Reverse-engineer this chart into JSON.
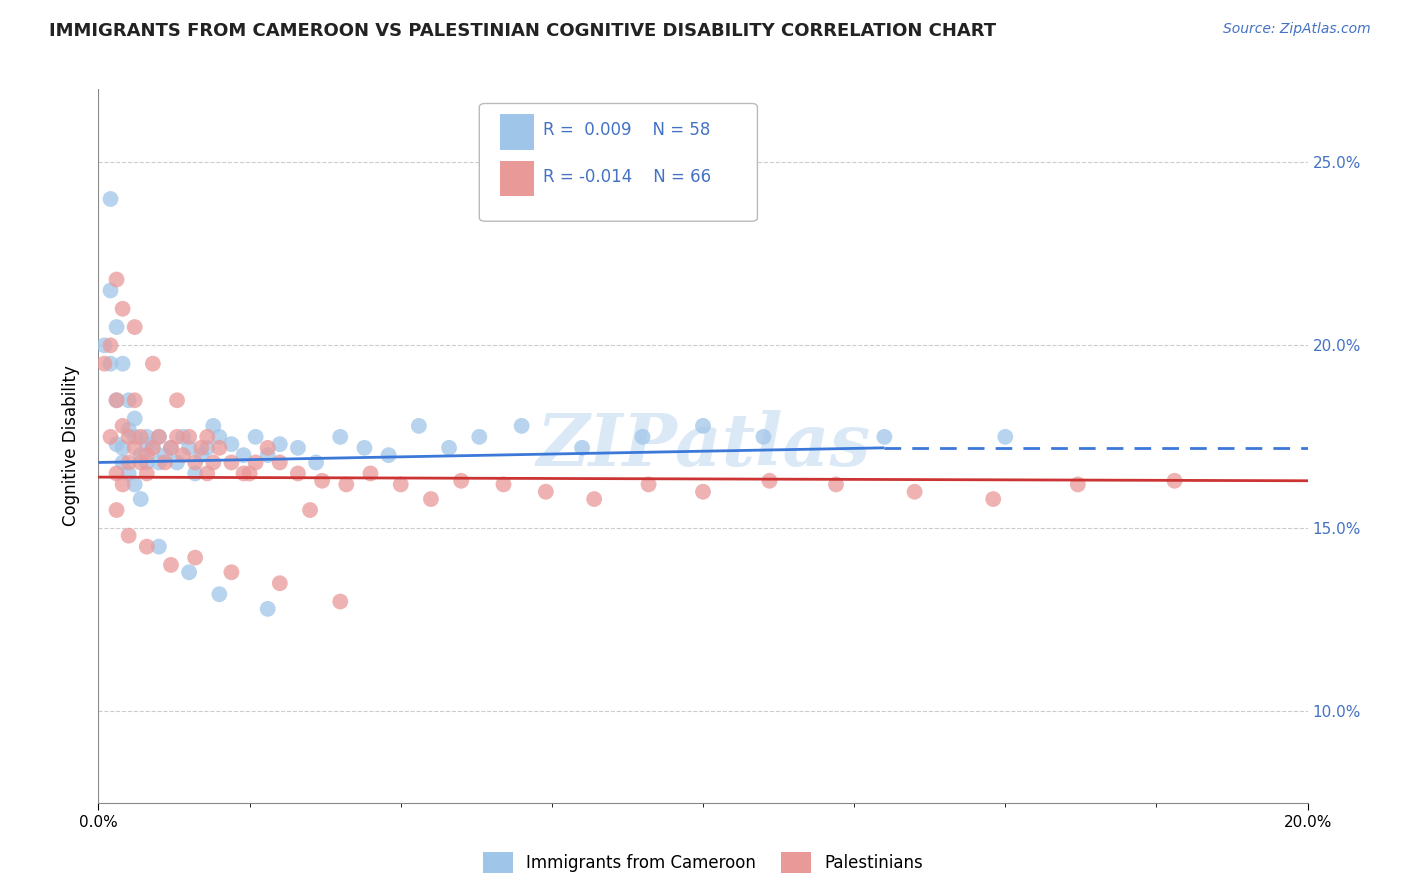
{
  "title": "IMMIGRANTS FROM CAMEROON VS PALESTINIAN COGNITIVE DISABILITY CORRELATION CHART",
  "source_text": "Source: ZipAtlas.com",
  "ylabel": "Cognitive Disability",
  "legend_label1": "Immigrants from Cameroon",
  "legend_label2": "Palestinians",
  "r1": 0.009,
  "n1": 58,
  "r2": -0.014,
  "n2": 66,
  "xmin": 0.0,
  "xmax": 0.2,
  "ymin": 0.075,
  "ymax": 0.27,
  "yticks": [
    0.1,
    0.15,
    0.2,
    0.25
  ],
  "ytick_labels": [
    "10.0%",
    "15.0%",
    "20.0%",
    "25.0%"
  ],
  "color_blue": "#9fc5e8",
  "color_pink": "#ea9999",
  "color_blue_line": "#3c78d8",
  "color_pink_line": "#cc3333",
  "watermark": "ZIPatlas",
  "blue_dots_x": [
    0.001,
    0.002,
    0.002,
    0.003,
    0.003,
    0.004,
    0.004,
    0.005,
    0.005,
    0.006,
    0.006,
    0.007,
    0.007,
    0.008,
    0.008,
    0.009,
    0.01,
    0.01,
    0.011,
    0.012,
    0.013,
    0.014,
    0.015,
    0.016,
    0.017,
    0.018,
    0.019,
    0.02,
    0.022,
    0.024,
    0.026,
    0.028,
    0.03,
    0.033,
    0.036,
    0.04,
    0.044,
    0.048,
    0.053,
    0.058,
    0.063,
    0.07,
    0.08,
    0.09,
    0.1,
    0.11,
    0.13,
    0.15,
    0.002,
    0.003,
    0.004,
    0.005,
    0.006,
    0.008,
    0.01,
    0.015,
    0.02,
    0.028
  ],
  "blue_dots_y": [
    0.2,
    0.215,
    0.195,
    0.185,
    0.173,
    0.172,
    0.168,
    0.177,
    0.165,
    0.175,
    0.162,
    0.17,
    0.158,
    0.173,
    0.168,
    0.172,
    0.168,
    0.175,
    0.17,
    0.172,
    0.168,
    0.175,
    0.172,
    0.165,
    0.17,
    0.172,
    0.178,
    0.175,
    0.173,
    0.17,
    0.175,
    0.17,
    0.173,
    0.172,
    0.168,
    0.175,
    0.172,
    0.17,
    0.178,
    0.172,
    0.175,
    0.178,
    0.172,
    0.175,
    0.178,
    0.175,
    0.175,
    0.175,
    0.24,
    0.205,
    0.195,
    0.185,
    0.18,
    0.175,
    0.145,
    0.138,
    0.132,
    0.128
  ],
  "pink_dots_x": [
    0.001,
    0.002,
    0.002,
    0.003,
    0.003,
    0.004,
    0.004,
    0.005,
    0.005,
    0.006,
    0.006,
    0.007,
    0.007,
    0.008,
    0.008,
    0.009,
    0.01,
    0.011,
    0.012,
    0.013,
    0.014,
    0.015,
    0.016,
    0.017,
    0.018,
    0.019,
    0.02,
    0.022,
    0.024,
    0.026,
    0.028,
    0.03,
    0.033,
    0.037,
    0.041,
    0.045,
    0.05,
    0.055,
    0.06,
    0.067,
    0.074,
    0.082,
    0.091,
    0.1,
    0.111,
    0.122,
    0.135,
    0.148,
    0.162,
    0.178,
    0.003,
    0.005,
    0.008,
    0.012,
    0.016,
    0.022,
    0.03,
    0.04,
    0.003,
    0.004,
    0.006,
    0.009,
    0.013,
    0.018,
    0.025,
    0.035
  ],
  "pink_dots_y": [
    0.195,
    0.2,
    0.175,
    0.185,
    0.165,
    0.178,
    0.162,
    0.175,
    0.168,
    0.185,
    0.172,
    0.175,
    0.168,
    0.17,
    0.165,
    0.172,
    0.175,
    0.168,
    0.172,
    0.175,
    0.17,
    0.175,
    0.168,
    0.172,
    0.165,
    0.168,
    0.172,
    0.168,
    0.165,
    0.168,
    0.172,
    0.168,
    0.165,
    0.163,
    0.162,
    0.165,
    0.162,
    0.158,
    0.163,
    0.162,
    0.16,
    0.158,
    0.162,
    0.16,
    0.163,
    0.162,
    0.16,
    0.158,
    0.162,
    0.163,
    0.155,
    0.148,
    0.145,
    0.14,
    0.142,
    0.138,
    0.135,
    0.13,
    0.218,
    0.21,
    0.205,
    0.195,
    0.185,
    0.175,
    0.165,
    0.155
  ]
}
